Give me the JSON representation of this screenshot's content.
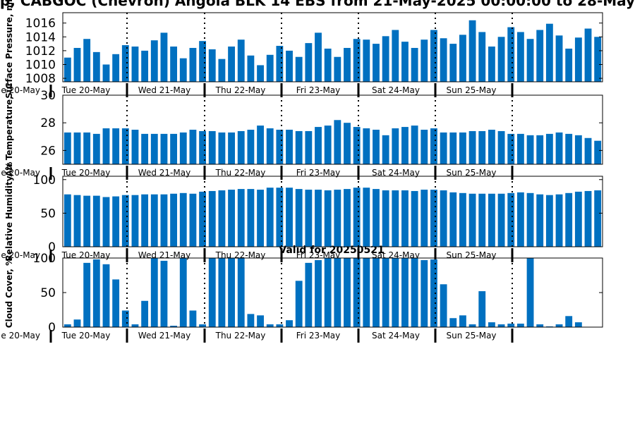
{
  "title": "p, CABGOC (Chevron) Angola BLK 14 EBS from 21-May-2025 00:00:00 to 28-May",
  "subtitle": "Valid for 20250521",
  "bar_color": "#0070c0",
  "day_labels": [
    "Tue 20-May",
    "Wed 21-May",
    "Thu 22-May",
    "Fri 23-May",
    "Sat 24-May",
    "Sun 25-May"
  ],
  "chart_data": [
    {
      "type": "bar",
      "ylabel": "Surface Pressure, mb",
      "ylim": [
        1007.5,
        1017.5
      ],
      "yticks": [
        1008,
        1010,
        1012,
        1014,
        1016
      ],
      "left_label": "e 20-May",
      "values": [
        1011.0,
        1012.4,
        1013.7,
        1011.8,
        1010.0,
        1011.5,
        1012.8,
        1012.6,
        1012.0,
        1013.5,
        1014.6,
        1012.6,
        1010.9,
        1012.4,
        1013.4,
        1012.2,
        1010.8,
        1012.6,
        1013.6,
        1011.3,
        1009.9,
        1011.4,
        1012.7,
        1012.0,
        1011.1,
        1013.1,
        1014.6,
        1012.3,
        1011.1,
        1012.4,
        1013.7,
        1013.6,
        1013.0,
        1014.1,
        1015.0,
        1013.3,
        1012.4,
        1013.6,
        1015.0,
        1013.8,
        1013.0,
        1014.3,
        1016.4,
        1014.7,
        1012.6,
        1014.0,
        1015.4,
        1014.7,
        1013.7,
        1015.0,
        1015.9,
        1014.2,
        1012.3,
        1013.9,
        1015.2,
        1014.0
      ]
    },
    {
      "type": "bar",
      "ylabel": "Air Temperature, °C",
      "ylim": [
        25,
        30
      ],
      "yticks": [
        26,
        28,
        30
      ],
      "left_label": "e 20-May",
      "values": [
        27.3,
        27.3,
        27.3,
        27.2,
        27.6,
        27.6,
        27.6,
        27.5,
        27.2,
        27.2,
        27.2,
        27.2,
        27.3,
        27.5,
        27.4,
        27.4,
        27.3,
        27.3,
        27.4,
        27.5,
        27.8,
        27.6,
        27.5,
        27.5,
        27.4,
        27.4,
        27.7,
        27.8,
        28.2,
        28.0,
        27.7,
        27.6,
        27.5,
        27.1,
        27.6,
        27.7,
        27.8,
        27.5,
        27.6,
        27.3,
        27.3,
        27.3,
        27.4,
        27.4,
        27.5,
        27.4,
        27.2,
        27.2,
        27.1,
        27.1,
        27.2,
        27.3,
        27.2,
        27.1,
        26.9,
        26.7
      ]
    },
    {
      "type": "bar",
      "ylabel": "Relative Humidity, %",
      "ylim": [
        0,
        105
      ],
      "yticks": [
        0,
        50,
        100
      ],
      "left_label": "e 20-May",
      "values": [
        78,
        77,
        76,
        76,
        74,
        75,
        77,
        77,
        78,
        78,
        78,
        79,
        80,
        79,
        82,
        83,
        84,
        85,
        86,
        86,
        85,
        88,
        88,
        88,
        86,
        85,
        85,
        84,
        85,
        86,
        88,
        88,
        86,
        84,
        84,
        84,
        83,
        85,
        85,
        84,
        81,
        80,
        79,
        79,
        79,
        79,
        80,
        81,
        80,
        78,
        77,
        78,
        80,
        82,
        83,
        84
      ]
    },
    {
      "type": "bar",
      "ylabel": "Cloud Cover, %",
      "ylim": [
        0,
        100
      ],
      "yticks": [
        0,
        50,
        100
      ],
      "left_label": "e 20-May",
      "values": [
        4,
        11,
        93,
        98,
        91,
        69,
        24,
        4,
        38,
        100,
        96,
        2,
        100,
        24,
        4,
        100,
        100,
        100,
        100,
        19,
        17,
        4,
        4,
        10,
        67,
        93,
        97,
        100,
        100,
        100,
        100,
        100,
        100,
        100,
        100,
        100,
        100,
        97,
        98,
        62,
        13,
        17,
        4,
        52,
        7,
        4,
        5,
        5,
        100,
        4,
        1,
        4,
        16,
        7,
        0,
        0
      ]
    }
  ]
}
